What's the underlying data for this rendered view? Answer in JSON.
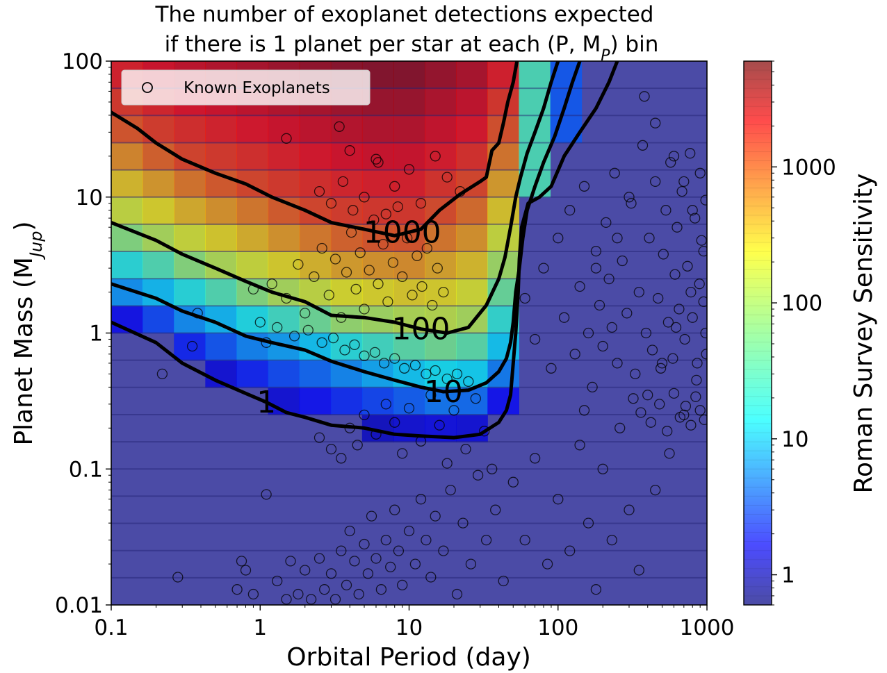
{
  "chart_data": {
    "type": "heatmap",
    "title_line1": "The number of exoplanet detections expected",
    "title_line2": "if there is 1 planet per star at each (P, M",
    "title_sub": "P",
    "title_end": ") bin",
    "xlabel": "Orbital Period (day)",
    "ylabel": "Planet Mass (M",
    "ylabel_sub": "Jup",
    "ylabel_end": ")",
    "xscale": "log",
    "yscale": "log",
    "xlim": [
      0.1,
      1000
    ],
    "ylim": [
      0.01,
      100
    ],
    "xticks": [
      0.1,
      1,
      10,
      100,
      1000
    ],
    "xticklabels": [
      "0.1",
      "1",
      "10",
      "100",
      "1000"
    ],
    "yticks": [
      0.01,
      0.1,
      1,
      10,
      100
    ],
    "yticklabels": [
      "0.01",
      "0.1",
      "1",
      "10",
      "100"
    ],
    "colorbar": {
      "label": "Roman Survey Sensitivity",
      "scale": "log",
      "range": [
        0.6,
        6000
      ],
      "colormap": "jet",
      "ticks": [
        1,
        10,
        100,
        1000
      ],
      "ticklabels": [
        "1",
        "10",
        "100",
        "1000"
      ]
    },
    "legend": {
      "entry": "Known Exoplanets",
      "marker": "open-circle",
      "placement": "top-left"
    },
    "contours": [
      {
        "level": "1000",
        "label_at": [
          9,
          5.5
        ],
        "points": [
          [
            0.1,
            42
          ],
          [
            0.15,
            32
          ],
          [
            0.2,
            25
          ],
          [
            0.3,
            19
          ],
          [
            0.5,
            15
          ],
          [
            0.8,
            12.5
          ],
          [
            1.2,
            10
          ],
          [
            2,
            8
          ],
          [
            3,
            6.5
          ],
          [
            5,
            5.8
          ],
          [
            8,
            5.2
          ],
          [
            12,
            5.8
          ],
          [
            16,
            8
          ],
          [
            22,
            10.5
          ],
          [
            30,
            13
          ],
          [
            33,
            14
          ],
          [
            36,
            22
          ],
          [
            40,
            25
          ],
          [
            43,
            35
          ],
          [
            46,
            50
          ],
          [
            50,
            70
          ],
          [
            53,
            100
          ]
        ]
      },
      {
        "level": "100",
        "label_at": [
          12,
          1.07
        ],
        "points": [
          [
            0.1,
            6.5
          ],
          [
            0.2,
            4.8
          ],
          [
            0.3,
            3.8
          ],
          [
            0.5,
            3
          ],
          [
            0.8,
            2.4
          ],
          [
            1.2,
            2
          ],
          [
            2,
            1.7
          ],
          [
            3,
            1.35
          ],
          [
            5,
            1.3
          ],
          [
            8,
            1.2
          ],
          [
            12,
            1.07
          ],
          [
            18,
            1
          ],
          [
            25,
            1.1
          ],
          [
            33,
            1.6
          ],
          [
            40,
            2.5
          ],
          [
            44,
            3.6
          ],
          [
            48,
            6
          ],
          [
            52,
            10
          ],
          [
            56,
            14
          ],
          [
            62,
            21
          ],
          [
            70,
            30
          ],
          [
            80,
            45
          ],
          [
            90,
            70
          ],
          [
            100,
            100
          ]
        ]
      },
      {
        "level": "10",
        "label_at": [
          17,
          0.37
        ],
        "points": [
          [
            0.1,
            2.3
          ],
          [
            0.2,
            1.8
          ],
          [
            0.3,
            1.45
          ],
          [
            0.5,
            1.2
          ],
          [
            0.8,
            0.95
          ],
          [
            1.2,
            0.85
          ],
          [
            2,
            0.75
          ],
          [
            3,
            0.62
          ],
          [
            5,
            0.52
          ],
          [
            8,
            0.45
          ],
          [
            12,
            0.4
          ],
          [
            17,
            0.37
          ],
          [
            25,
            0.38
          ],
          [
            33,
            0.43
          ],
          [
            40,
            0.52
          ],
          [
            45,
            0.65
          ],
          [
            48,
            0.85
          ],
          [
            50,
            1.2
          ],
          [
            52,
            2
          ],
          [
            55,
            3
          ],
          [
            58,
            5
          ],
          [
            62,
            8
          ],
          [
            70,
            12
          ],
          [
            80,
            18
          ],
          [
            95,
            28
          ],
          [
            110,
            45
          ],
          [
            125,
            70
          ],
          [
            140,
            100
          ]
        ]
      },
      {
        "level": "1",
        "label_at": [
          1.1,
          0.31
        ],
        "points": [
          [
            0.1,
            1.2
          ],
          [
            0.2,
            0.85
          ],
          [
            0.3,
            0.6
          ],
          [
            0.5,
            0.45
          ],
          [
            0.8,
            0.36
          ],
          [
            1.1,
            0.31
          ],
          [
            1.5,
            0.26
          ],
          [
            2,
            0.24
          ],
          [
            3,
            0.21
          ],
          [
            5,
            0.2
          ],
          [
            8,
            0.18
          ],
          [
            12,
            0.175
          ],
          [
            20,
            0.17
          ],
          [
            30,
            0.18
          ],
          [
            40,
            0.22
          ],
          [
            45,
            0.27
          ],
          [
            48,
            0.35
          ],
          [
            50,
            0.6
          ],
          [
            52,
            1
          ],
          [
            54,
            2
          ],
          [
            55,
            3.5
          ],
          [
            57,
            6
          ],
          [
            63,
            9
          ],
          [
            75,
            10
          ],
          [
            90,
            12
          ],
          [
            110,
            20
          ],
          [
            140,
            30
          ],
          [
            180,
            45
          ],
          [
            220,
            70
          ],
          [
            250,
            100
          ]
        ]
      }
    ],
    "known_exoplanets": [
      [
        0.28,
        0.016
      ],
      [
        0.3,
        0.009
      ],
      [
        0.35,
        0.8
      ],
      [
        0.38,
        1.4
      ],
      [
        0.22,
        0.5
      ],
      [
        0.65,
        0.009
      ],
      [
        0.7,
        0.013
      ],
      [
        0.75,
        0.021
      ],
      [
        0.8,
        0.018
      ],
      [
        0.9,
        0.012
      ],
      [
        1.0,
        0.009
      ],
      [
        1.1,
        0.065
      ],
      [
        1.3,
        0.015
      ],
      [
        1.4,
        0.009
      ],
      [
        1.5,
        0.011
      ],
      [
        1.6,
        0.021
      ],
      [
        1.8,
        0.012
      ],
      [
        2.0,
        0.018
      ],
      [
        2.2,
        0.011
      ],
      [
        2.5,
        0.022
      ],
      [
        2.7,
        0.013
      ],
      [
        3.0,
        0.017
      ],
      [
        3.2,
        0.011
      ],
      [
        3.5,
        0.025
      ],
      [
        3.8,
        0.014
      ],
      [
        4.0,
        0.035
      ],
      [
        4.3,
        0.021
      ],
      [
        4.6,
        0.012
      ],
      [
        5.0,
        0.028
      ],
      [
        5.3,
        0.017
      ],
      [
        5.6,
        0.045
      ],
      [
        6.0,
        0.022
      ],
      [
        6.5,
        0.013
      ],
      [
        7.0,
        0.03
      ],
      [
        7.5,
        0.019
      ],
      [
        8.0,
        0.05
      ],
      [
        8.5,
        0.025
      ],
      [
        9.0,
        0.014
      ],
      [
        10,
        0.035
      ],
      [
        11,
        0.02
      ],
      [
        12,
        0.06
      ],
      [
        13,
        0.03
      ],
      [
        14,
        0.016
      ],
      [
        15,
        0.045
      ],
      [
        17,
        0.025
      ],
      [
        19,
        0.07
      ],
      [
        21,
        0.012
      ],
      [
        23,
        0.04
      ],
      [
        26,
        0.02
      ],
      [
        29,
        0.09
      ],
      [
        33,
        0.03
      ],
      [
        38,
        0.05
      ],
      [
        43,
        0.015
      ],
      [
        50,
        0.08
      ],
      [
        60,
        0.03
      ],
      [
        70,
        0.12
      ],
      [
        85,
        0.02
      ],
      [
        100,
        0.06
      ],
      [
        120,
        0.025
      ],
      [
        140,
        0.15
      ],
      [
        160,
        0.04
      ],
      [
        180,
        0.013
      ],
      [
        200,
        0.1
      ],
      [
        230,
        0.03
      ],
      [
        260,
        0.2
      ],
      [
        300,
        0.05
      ],
      [
        350,
        0.018
      ],
      [
        400,
        0.35
      ],
      [
        450,
        0.07
      ],
      [
        500,
        0.6
      ],
      [
        560,
        0.13
      ],
      [
        620,
        1.1
      ],
      [
        700,
        0.25
      ],
      [
        780,
        2
      ],
      [
        850,
        0.45
      ],
      [
        950,
        4
      ],
      [
        980,
        1
      ],
      [
        2.5,
        0.17
      ],
      [
        3,
        0.14
      ],
      [
        3.5,
        0.12
      ],
      [
        4,
        0.2
      ],
      [
        4.5,
        0.15
      ],
      [
        5,
        0.25
      ],
      [
        6,
        0.18
      ],
      [
        7,
        0.3
      ],
      [
        8,
        0.22
      ],
      [
        9,
        0.13
      ],
      [
        10,
        0.28
      ],
      [
        12,
        0.16
      ],
      [
        14,
        0.35
      ],
      [
        16,
        0.21
      ],
      [
        18,
        0.11
      ],
      [
        20,
        0.27
      ],
      [
        24,
        0.14
      ],
      [
        28,
        0.33
      ],
      [
        32,
        0.19
      ],
      [
        36,
        0.1
      ],
      [
        1.2,
        2.3
      ],
      [
        1.5,
        1.8
      ],
      [
        1.8,
        3.2
      ],
      [
        2.0,
        1.4
      ],
      [
        2.3,
        2.6
      ],
      [
        2.6,
        4.2
      ],
      [
        2.9,
        1.9
      ],
      [
        3.2,
        3.5
      ],
      [
        3.5,
        1.3
      ],
      [
        3.8,
        2.8
      ],
      [
        4.1,
        5.5
      ],
      [
        4.4,
        2.1
      ],
      [
        4.7,
        3.9
      ],
      [
        5.0,
        1.5
      ],
      [
        5.4,
        2.9
      ],
      [
        5.8,
        6.8
      ],
      [
        6.2,
        2.3
      ],
      [
        6.7,
        4.5
      ],
      [
        7.2,
        1.7
      ],
      [
        7.8,
        3.3
      ],
      [
        8.4,
        8.5
      ],
      [
        9,
        2.6
      ],
      [
        9.7,
        5
      ],
      [
        10.5,
        1.9
      ],
      [
        11.3,
        3.7
      ],
      [
        12.2,
        2.2
      ],
      [
        13.2,
        4.2
      ],
      [
        14.3,
        1.6
      ],
      [
        15.5,
        3
      ],
      [
        17,
        2
      ],
      [
        1.3,
        1.1
      ],
      [
        1.7,
        0.95
      ],
      [
        2.1,
        1.05
      ],
      [
        2.6,
        0.85
      ],
      [
        3.1,
        0.92
      ],
      [
        3.7,
        0.75
      ],
      [
        4.3,
        0.82
      ],
      [
        5,
        0.68
      ],
      [
        5.9,
        0.72
      ],
      [
        6.8,
        0.6
      ],
      [
        8,
        0.65
      ],
      [
        9.3,
        0.55
      ],
      [
        11,
        0.58
      ],
      [
        13,
        0.5
      ],
      [
        15,
        0.53
      ],
      [
        18,
        0.46
      ],
      [
        21,
        0.5
      ],
      [
        25,
        0.44
      ],
      [
        0.9,
        2.1
      ],
      [
        1.0,
        1.2
      ],
      [
        1.1,
        0.85
      ],
      [
        2.5,
        11
      ],
      [
        3,
        9
      ],
      [
        3.6,
        13
      ],
      [
        4.2,
        8
      ],
      [
        5,
        10
      ],
      [
        6,
        19
      ],
      [
        7,
        7.5
      ],
      [
        8,
        12
      ],
      [
        10,
        16
      ],
      [
        12,
        9
      ],
      [
        15,
        20
      ],
      [
        18,
        14
      ],
      [
        22,
        11
      ],
      [
        1.5,
        27
      ],
      [
        4,
        22
      ],
      [
        6.2,
        18
      ],
      [
        3.4,
        33
      ],
      [
        60,
        1.8
      ],
      [
        70,
        0.9
      ],
      [
        80,
        3
      ],
      [
        90,
        0.55
      ],
      [
        100,
        5
      ],
      [
        110,
        1.3
      ],
      [
        120,
        8
      ],
      [
        130,
        0.7
      ],
      [
        140,
        2.2
      ],
      [
        150,
        12
      ],
      [
        160,
        1
      ],
      [
        170,
        0.4
      ],
      [
        180,
        4
      ],
      [
        190,
        1.6
      ],
      [
        200,
        0.8
      ],
      [
        210,
        6.5
      ],
      [
        220,
        2.5
      ],
      [
        230,
        1.1
      ],
      [
        240,
        15
      ],
      [
        250,
        0.6
      ],
      [
        270,
        3.4
      ],
      [
        290,
        1.4
      ],
      [
        310,
        9
      ],
      [
        330,
        0.5
      ],
      [
        350,
        2
      ],
      [
        370,
        24
      ],
      [
        390,
        1
      ],
      [
        410,
        5
      ],
      [
        430,
        0.75
      ],
      [
        450,
        13
      ],
      [
        470,
        1.8
      ],
      [
        490,
        0.55
      ],
      [
        510,
        3.8
      ],
      [
        530,
        8
      ],
      [
        550,
        1.2
      ],
      [
        570,
        18
      ],
      [
        590,
        0.65
      ],
      [
        610,
        2.7
      ],
      [
        630,
        6
      ],
      [
        650,
        1.5
      ],
      [
        680,
        11
      ],
      [
        710,
        0.9
      ],
      [
        740,
        3.1
      ],
      [
        770,
        21
      ],
      [
        800,
        1.3
      ],
      [
        830,
        7
      ],
      [
        860,
        0.6
      ],
      [
        890,
        2.3
      ],
      [
        920,
        4.8
      ],
      [
        950,
        1.7
      ],
      [
        980,
        9.5
      ],
      [
        990,
        0.7
      ],
      [
        320,
        0.33
      ],
      [
        360,
        0.26
      ],
      [
        420,
        0.22
      ],
      [
        480,
        0.3
      ],
      [
        540,
        0.19
      ],
      [
        600,
        0.36
      ],
      [
        660,
        0.24
      ],
      [
        720,
        0.29
      ],
      [
        780,
        0.21
      ],
      [
        840,
        0.34
      ],
      [
        900,
        0.27
      ],
      [
        960,
        0.23
      ],
      [
        600,
        20
      ],
      [
        700,
        13
      ],
      [
        800,
        8
      ],
      [
        900,
        15
      ],
      [
        380,
        55
      ],
      [
        450,
        35
      ],
      [
        300,
        10
      ],
      [
        250,
        5
      ],
      [
        180,
        3
      ],
      [
        150,
        0.27
      ]
    ]
  }
}
